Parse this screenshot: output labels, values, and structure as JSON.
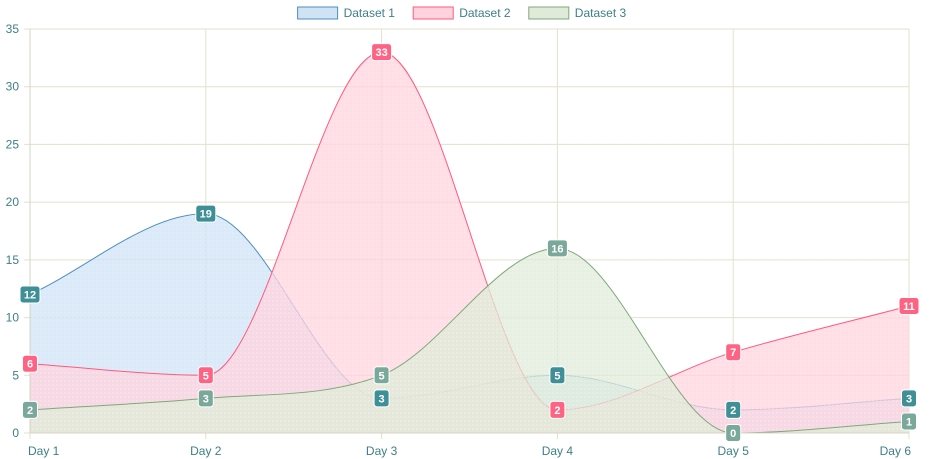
{
  "chart_data": {
    "type": "area",
    "categories": [
      "Day 1",
      "Day 2",
      "Day 3",
      "Day 4",
      "Day 5",
      "Day 6"
    ],
    "ylim": [
      0,
      35
    ],
    "yticks": [
      0,
      5,
      10,
      15,
      20,
      25,
      30,
      35
    ],
    "grid": true,
    "legend_position": "top-center",
    "series": [
      {
        "name": "Dataset 1",
        "values": [
          12,
          19,
          3,
          5,
          2,
          3
        ],
        "stroke": "#4e8fbf",
        "fill": "#cfe3f5",
        "label_bg": "#3f8f96"
      },
      {
        "name": "Dataset 2",
        "values": [
          6,
          5,
          33,
          2,
          7,
          11
        ],
        "stroke": "#ff5a7e",
        "fill": "#ffd3dd",
        "label_bg": "#ff6384"
      },
      {
        "name": "Dataset 3",
        "values": [
          2,
          3,
          5,
          16,
          0,
          1
        ],
        "stroke": "#7fa87a",
        "fill": "#dfebd8",
        "label_bg": "#7aa89a"
      }
    ],
    "tick_color": "#3d7f88",
    "grid_color": "#e3e0cf"
  }
}
